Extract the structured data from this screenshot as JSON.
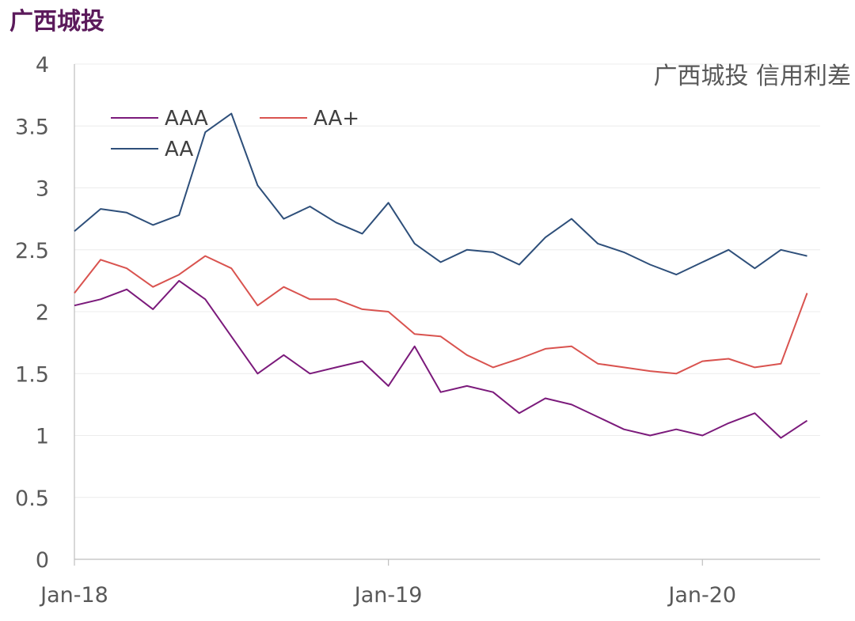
{
  "page_title": "广西城投",
  "chart_data": {
    "type": "line",
    "title": "广西城投 信用利差",
    "xlabel": "",
    "ylabel": "",
    "ylim": [
      0,
      4
    ],
    "yticks": [
      "0",
      "0.5",
      "1",
      "1.5",
      "2",
      "2.5",
      "3",
      "3.5",
      "4"
    ],
    "xticks": [
      {
        "label": "Jan-18",
        "x": "2018-01"
      },
      {
        "label": "Jan-19",
        "x": "2019-01"
      },
      {
        "label": "Jan-20",
        "x": "2020-01"
      }
    ],
    "x_range": [
      "2018-01",
      "2020-05"
    ],
    "grid": "horizontal",
    "legend_position": "top-left",
    "series": [
      {
        "name": "AAA",
        "color": "#7b1a7b",
        "x": [
          "2018-01",
          "2018-02",
          "2018-03",
          "2018-04",
          "2018-05",
          "2018-06",
          "2018-07",
          "2018-08",
          "2018-09",
          "2018-10",
          "2018-11",
          "2018-12",
          "2019-01",
          "2019-02",
          "2019-03",
          "2019-04",
          "2019-05",
          "2019-06",
          "2019-07",
          "2019-08",
          "2019-09",
          "2019-10",
          "2019-11",
          "2019-12",
          "2020-01",
          "2020-02",
          "2020-03",
          "2020-04",
          "2020-05"
        ],
        "values": [
          2.05,
          2.1,
          2.18,
          2.02,
          2.25,
          2.1,
          1.8,
          1.5,
          1.65,
          1.5,
          1.55,
          1.6,
          1.4,
          1.72,
          1.35,
          1.4,
          1.35,
          1.18,
          1.3,
          1.25,
          1.15,
          1.05,
          1.0,
          1.05,
          1.0,
          1.1,
          1.18,
          0.98,
          1.12
        ]
      },
      {
        "name": "AA+",
        "color": "#d9534f",
        "x": [
          "2018-01",
          "2018-02",
          "2018-03",
          "2018-04",
          "2018-05",
          "2018-06",
          "2018-07",
          "2018-08",
          "2018-09",
          "2018-10",
          "2018-11",
          "2018-12",
          "2019-01",
          "2019-02",
          "2019-03",
          "2019-04",
          "2019-05",
          "2019-06",
          "2019-07",
          "2019-08",
          "2019-09",
          "2019-10",
          "2019-11",
          "2019-12",
          "2020-01",
          "2020-02",
          "2020-03",
          "2020-04",
          "2020-05"
        ],
        "values": [
          2.15,
          2.42,
          2.35,
          2.2,
          2.3,
          2.45,
          2.35,
          2.05,
          2.2,
          2.1,
          2.1,
          2.02,
          2.0,
          1.82,
          1.8,
          1.65,
          1.55,
          1.62,
          1.7,
          1.72,
          1.58,
          1.55,
          1.52,
          1.5,
          1.6,
          1.62,
          1.55,
          1.58,
          2.15
        ]
      },
      {
        "name": "AA",
        "color": "#2e4f7a",
        "x": [
          "2018-01",
          "2018-02",
          "2018-03",
          "2018-04",
          "2018-05",
          "2018-06",
          "2018-07",
          "2018-08",
          "2018-09",
          "2018-10",
          "2018-11",
          "2018-12",
          "2019-01",
          "2019-02",
          "2019-03",
          "2019-04",
          "2019-05",
          "2019-06",
          "2019-07",
          "2019-08",
          "2019-09",
          "2019-10",
          "2019-11",
          "2019-12",
          "2020-01",
          "2020-02",
          "2020-03",
          "2020-04",
          "2020-05"
        ],
        "values": [
          2.65,
          2.83,
          2.8,
          2.7,
          2.78,
          3.45,
          3.6,
          3.02,
          2.75,
          2.85,
          2.72,
          2.63,
          2.88,
          2.55,
          2.4,
          2.5,
          2.48,
          2.38,
          2.6,
          2.75,
          2.55,
          2.48,
          2.38,
          2.3,
          2.4,
          2.5,
          2.35,
          2.5,
          2.45
        ]
      }
    ]
  }
}
